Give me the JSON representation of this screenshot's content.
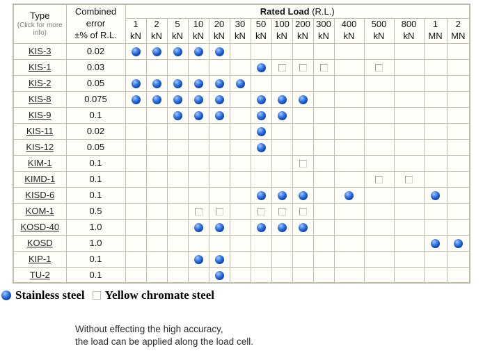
{
  "colors": {
    "ball_blue": "#1557c9",
    "table_border": "#c1bdae",
    "cell_bg": "#fffef8",
    "link": "#1f1f1f"
  },
  "table": {
    "header": {
      "type_label": "Type",
      "type_subtext": "(Click for more info)",
      "error_label": "Combined\nerror\n±% of R.L.",
      "rated_load_label": "Rated Load",
      "rated_load_suffix": "(R.L.)",
      "load_columns": [
        {
          "value": "1",
          "unit": "kN"
        },
        {
          "value": "2",
          "unit": "kN"
        },
        {
          "value": "5",
          "unit": "kN"
        },
        {
          "value": "10",
          "unit": "kN"
        },
        {
          "value": "20",
          "unit": "kN"
        },
        {
          "value": "30",
          "unit": "kN"
        },
        {
          "value": "50",
          "unit": "kN"
        },
        {
          "value": "100",
          "unit": "kN"
        },
        {
          "value": "200",
          "unit": "kN"
        },
        {
          "value": "300",
          "unit": "kN"
        },
        {
          "value": "400",
          "unit": "kN"
        },
        {
          "value": "500",
          "unit": "kN"
        },
        {
          "value": "800",
          "unit": "kN"
        },
        {
          "value": "1",
          "unit": "MN"
        },
        {
          "value": "2",
          "unit": "MN"
        }
      ]
    },
    "rows": [
      {
        "type": "KIS-3",
        "error": "0.02",
        "marks": [
          "dot",
          "dot",
          "dot",
          "dot",
          "dot",
          "",
          "",
          "",
          "",
          "",
          "",
          "",
          "",
          "",
          ""
        ]
      },
      {
        "type": "KIS-1",
        "error": "0.03",
        "marks": [
          "",
          "",
          "",
          "",
          "",
          "",
          "dot",
          "square",
          "square",
          "square",
          "",
          "square",
          "",
          "",
          ""
        ]
      },
      {
        "type": "KIS-2",
        "error": "0.05",
        "marks": [
          "dot",
          "dot",
          "dot",
          "dot",
          "dot",
          "dot",
          "",
          "",
          "",
          "",
          "",
          "",
          "",
          "",
          ""
        ]
      },
      {
        "type": "KIS-8",
        "error": "0.075",
        "marks": [
          "dot",
          "dot",
          "dot",
          "dot",
          "dot",
          "",
          "dot",
          "dot",
          "dot",
          "",
          "",
          "",
          "",
          "",
          ""
        ]
      },
      {
        "type": "KIS-9",
        "error": "0.1",
        "marks": [
          "",
          "",
          "dot",
          "dot",
          "dot",
          "",
          "dot",
          "dot",
          "",
          "",
          "",
          "",
          "",
          "",
          ""
        ]
      },
      {
        "type": "KIS-11",
        "error": "0.02",
        "marks": [
          "",
          "",
          "",
          "",
          "",
          "",
          "dot",
          "",
          "",
          "",
          "",
          "",
          "",
          "",
          ""
        ]
      },
      {
        "type": "KIS-12",
        "error": "0.05",
        "marks": [
          "",
          "",
          "",
          "",
          "",
          "",
          "dot",
          "",
          "",
          "",
          "",
          "",
          "",
          "",
          ""
        ]
      },
      {
        "type": "KIM-1",
        "error": "0.1",
        "marks": [
          "",
          "",
          "",
          "",
          "",
          "",
          "",
          "",
          "square",
          "",
          "",
          "",
          "",
          "",
          ""
        ]
      },
      {
        "type": "KIMD-1",
        "error": "0.1",
        "marks": [
          "",
          "",
          "",
          "",
          "",
          "",
          "",
          "",
          "",
          "",
          "",
          "square",
          "square",
          "",
          ""
        ]
      },
      {
        "type": "KISD-6",
        "error": "0.1",
        "marks": [
          "",
          "",
          "",
          "",
          "",
          "",
          "dot",
          "dot",
          "dot",
          "",
          "dot",
          "",
          "",
          "dot",
          ""
        ]
      },
      {
        "type": "KOM-1",
        "error": "0.5",
        "marks": [
          "",
          "",
          "",
          "square",
          "square",
          "",
          "square",
          "square",
          "square",
          "",
          "",
          "",
          "",
          "",
          ""
        ]
      },
      {
        "type": "KOSD-40",
        "error": "1.0",
        "marks": [
          "",
          "",
          "",
          "dot",
          "dot",
          "",
          "dot",
          "dot",
          "dot",
          "",
          "",
          "",
          "",
          "",
          ""
        ]
      },
      {
        "type": "KOSD",
        "error": "1.0",
        "marks": [
          "",
          "",
          "",
          "",
          "",
          "",
          "",
          "",
          "",
          "",
          "",
          "",
          "",
          "dot",
          "dot"
        ]
      },
      {
        "type": "KIP-1",
        "error": "0.1",
        "marks": [
          "",
          "",
          "",
          "dot",
          "dot",
          "",
          "",
          "",
          "",
          "",
          "",
          "",
          "",
          "",
          ""
        ]
      },
      {
        "type": "TU-2",
        "error": "0.1",
        "marks": [
          "",
          "",
          "",
          "",
          "dot",
          "",
          "",
          "",
          "",
          "",
          "",
          "",
          "",
          "",
          ""
        ]
      }
    ]
  },
  "legend": {
    "dot_label": "Stainless steel",
    "square_label": "Yellow chromate steel"
  },
  "note": {
    "line1": "Without effecting the high accuracy,",
    "line2": "the load can be applied along the load cell."
  }
}
